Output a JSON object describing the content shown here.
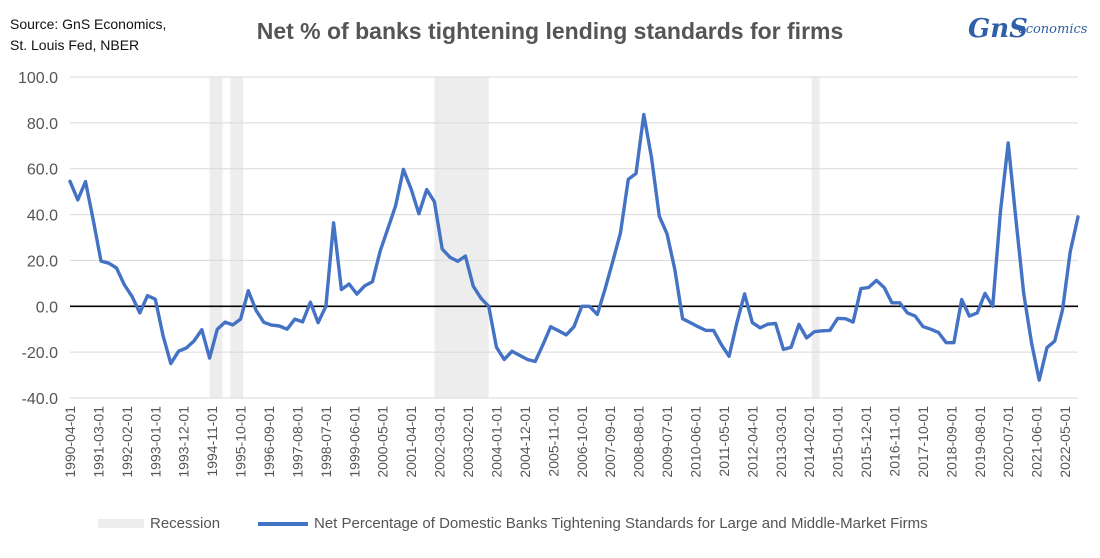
{
  "header": {
    "source_line1": "Source: GnS Economics,",
    "source_line2": "St. Louis Fed, NBER",
    "title": "Net % of banks tightening lending standards for firms"
  },
  "logo": {
    "mark": "GnS",
    "text": "economics",
    "color": "#2f5fa8"
  },
  "chart_data": {
    "type": "line",
    "title": "Net % of banks tightening lending standards for firms",
    "ylim": [
      -40,
      100
    ],
    "yticks": [
      "100.0",
      "80.0",
      "60.0",
      "40.0",
      "20.0",
      "0.0",
      "-20.0",
      "-40.0"
    ],
    "ytick_values": [
      100,
      80,
      60,
      40,
      20,
      0,
      -20,
      -40
    ],
    "grid": "horizontal",
    "legend_position": "bottom",
    "xtick_labels": [
      "1990-04-01",
      "1991-03-01",
      "1992-02-01",
      "1993-01-01",
      "1993-12-01",
      "1994-11-01",
      "1995-10-01",
      "1996-09-01",
      "1997-08-01",
      "1998-07-01",
      "1999-06-01",
      "2000-05-01",
      "2001-04-01",
      "2002-03-01",
      "2003-02-01",
      "2004-01-01",
      "2004-12-01",
      "2005-11-01",
      "2006-10-01",
      "2007-09-01",
      "2008-08-01",
      "2009-07-01",
      "2010-06-01",
      "2011-05-01",
      "2012-04-01",
      "2013-03-01",
      "2014-02-01",
      "2015-01-01",
      "2015-12-01",
      "2016-11-01",
      "2017-10-01",
      "2018-09-01",
      "2019-08-01",
      "2020-07-01",
      "2021-06-01",
      "2022-05-01"
    ],
    "recessions": [
      {
        "start": "1994-10-01",
        "end": "1995-03-01"
      },
      {
        "start": "1995-06-01",
        "end": "1995-11-01"
      },
      {
        "start": "2002-01-01",
        "end": "2003-10-01"
      },
      {
        "start": "2014-03-01",
        "end": "2014-06-01"
      }
    ],
    "series": [
      {
        "name": "Net Percentage of Domestic Banks Tightening Standards for Large and Middle-Market Firms",
        "color": "#4472c4",
        "x": [
          "1990-04-01",
          "1990-07-01",
          "1990-10-01",
          "1991-01-01",
          "1991-04-01",
          "1991-07-01",
          "1991-10-01",
          "1992-01-01",
          "1992-04-01",
          "1992-07-01",
          "1992-10-01",
          "1993-01-01",
          "1993-04-01",
          "1993-07-01",
          "1993-10-01",
          "1994-01-01",
          "1994-04-01",
          "1994-07-01",
          "1994-10-01",
          "1995-01-01",
          "1995-04-01",
          "1995-07-01",
          "1995-10-01",
          "1996-01-01",
          "1996-04-01",
          "1996-07-01",
          "1996-10-01",
          "1997-01-01",
          "1997-04-01",
          "1997-07-01",
          "1997-10-01",
          "1998-01-01",
          "1998-04-01",
          "1998-07-01",
          "1998-10-01",
          "1999-01-01",
          "1999-04-01",
          "1999-07-01",
          "1999-10-01",
          "2000-01-01",
          "2000-04-01",
          "2000-07-01",
          "2000-10-01",
          "2001-01-01",
          "2001-04-01",
          "2001-07-01",
          "2001-10-01",
          "2002-01-01",
          "2002-04-01",
          "2002-07-01",
          "2002-10-01",
          "2003-01-01",
          "2003-04-01",
          "2003-07-01",
          "2003-10-01",
          "2004-01-01",
          "2004-04-01",
          "2004-07-01",
          "2004-10-01",
          "2005-01-01",
          "2005-04-01",
          "2005-07-01",
          "2005-10-01",
          "2006-01-01",
          "2006-04-01",
          "2006-07-01",
          "2006-10-01",
          "2007-01-01",
          "2007-04-01",
          "2007-07-01",
          "2007-10-01",
          "2008-01-01",
          "2008-04-01",
          "2008-07-01",
          "2008-10-01",
          "2009-01-01",
          "2009-04-01",
          "2009-07-01",
          "2009-10-01",
          "2010-01-01",
          "2010-04-01",
          "2010-07-01",
          "2010-10-01",
          "2011-01-01",
          "2011-04-01",
          "2011-07-01",
          "2011-10-01",
          "2012-01-01",
          "2012-04-01",
          "2012-07-01",
          "2012-10-01",
          "2013-01-01",
          "2013-04-01",
          "2013-07-01",
          "2013-10-01",
          "2014-01-01",
          "2014-04-01",
          "2014-07-01",
          "2014-10-01",
          "2015-01-01",
          "2015-04-01",
          "2015-07-01",
          "2015-10-01",
          "2016-01-01",
          "2016-04-01",
          "2016-07-01",
          "2016-10-01",
          "2017-01-01",
          "2017-04-01",
          "2017-07-01",
          "2017-10-01",
          "2018-01-01",
          "2018-04-01",
          "2018-07-01",
          "2018-10-01",
          "2019-01-01",
          "2019-04-01",
          "2019-07-01",
          "2019-10-01",
          "2020-01-01",
          "2020-04-01",
          "2020-07-01",
          "2020-10-01",
          "2021-01-01",
          "2021-04-01",
          "2021-07-01",
          "2021-10-01",
          "2022-01-01",
          "2022-04-01",
          "2022-07-01",
          "2022-10-01"
        ],
        "values": [
          54.5,
          46.4,
          54.4,
          37.5,
          19.7,
          18.8,
          16.7,
          9.4,
          4.3,
          -2.9,
          4.6,
          3.1,
          -12.7,
          -25.0,
          -19.6,
          -18.2,
          -15.1,
          -10.2,
          -22.6,
          -10.0,
          -6.9,
          -8.1,
          -5.6,
          6.8,
          -1.8,
          -7.0,
          -8.2,
          -8.6,
          -10.0,
          -5.6,
          -6.8,
          1.8,
          -7.1,
          0.0,
          36.4,
          7.3,
          9.7,
          5.3,
          8.9,
          10.7,
          24.1,
          33.9,
          44.0,
          59.7,
          51.0,
          40.4,
          50.9,
          45.6,
          25.0,
          21.4,
          19.6,
          21.9,
          8.8,
          3.5,
          0.0,
          -17.9,
          -23.2,
          -19.6,
          -21.4,
          -23.2,
          -24.1,
          -16.7,
          -8.9,
          -10.7,
          -12.5,
          -8.9,
          0.0,
          0.0,
          -3.6,
          7.4,
          19.6,
          32.1,
          55.4,
          57.9,
          83.6,
          64.9,
          39.3,
          31.6,
          16.1,
          -5.4,
          -7.1,
          -8.9,
          -10.5,
          -10.5,
          -16.7,
          -21.8,
          -7.3,
          5.4,
          -7.1,
          -9.4,
          -7.8,
          -7.5,
          -18.8,
          -17.9,
          -7.9,
          -13.8,
          -11.1,
          -10.7,
          -10.5,
          -5.3,
          -5.4,
          -6.9,
          7.7,
          8.2,
          11.3,
          8.2,
          1.5,
          1.5,
          -2.9,
          -4.3,
          -8.8,
          -10.0,
          -11.4,
          -15.9,
          -15.9,
          2.9,
          -4.3,
          -2.9,
          5.6,
          0.0,
          41.5,
          71.2,
          37.5,
          5.6,
          -15.9,
          -32.2,
          -18.0,
          -15.2,
          -1.6,
          23.7,
          39.0
        ]
      }
    ]
  },
  "legend": {
    "recession_label": "Recession",
    "series_label": "Net Percentage of Domestic Banks Tightening Standards for Large and Middle-Market Firms"
  }
}
